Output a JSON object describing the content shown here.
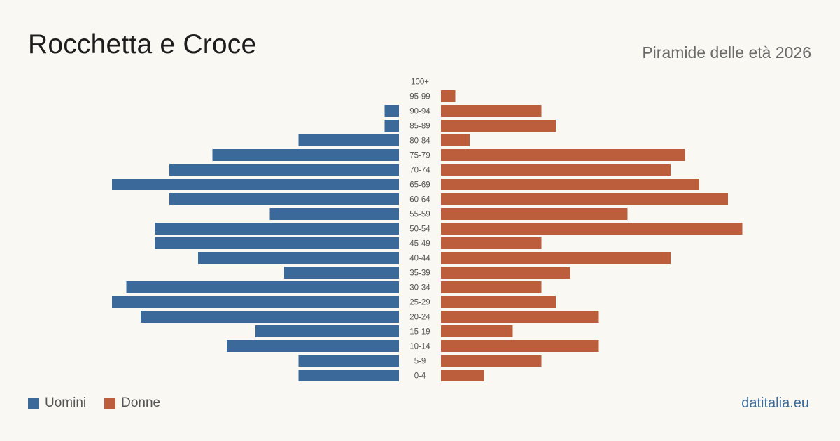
{
  "title": "Rocchetta  e Croce",
  "subtitle": "Piramide delle età 2026",
  "brand": "datitalia.eu",
  "colors": {
    "men": "#3b6a9a",
    "women": "#bc5e3c",
    "label": "#555555"
  },
  "legend": {
    "men": "Uomini",
    "women": "Donne"
  },
  "chart_data": {
    "type": "bar",
    "orientation": "horizontal-pyramid",
    "categories": [
      "100+",
      "95-99",
      "90-94",
      "85-89",
      "80-84",
      "75-79",
      "70-74",
      "65-69",
      "60-64",
      "55-59",
      "50-54",
      "45-49",
      "40-44",
      "35-39",
      "30-34",
      "25-29",
      "20-24",
      "15-19",
      "10-14",
      "5-9",
      "0-4"
    ],
    "series": [
      {
        "name": "Uomini",
        "values": [
          0,
          0,
          1,
          1,
          7,
          13,
          16,
          20,
          16,
          9,
          17,
          17,
          14,
          8,
          19,
          20,
          18,
          10,
          12,
          7,
          7
        ]
      },
      {
        "name": "Donne",
        "values": [
          0,
          1,
          7,
          8,
          2,
          17,
          16,
          18,
          20,
          13,
          21,
          7,
          16,
          9,
          7,
          8,
          11,
          5,
          11,
          7,
          3
        ]
      }
    ],
    "legend_position": "bottom-left"
  }
}
